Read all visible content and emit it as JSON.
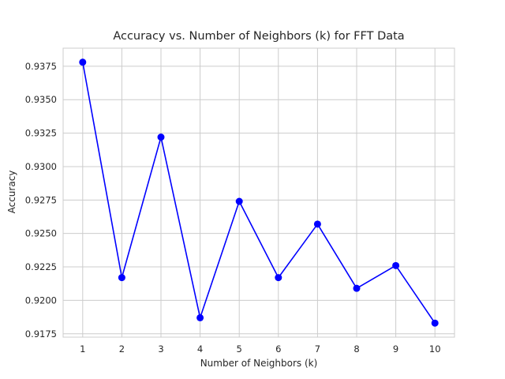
{
  "chart_data": {
    "type": "line",
    "title": "Accuracy vs. Number of Neighbors (k) for FFT Data",
    "xlabel": "Number of Neighbors (k)",
    "ylabel": "Accuracy",
    "x": [
      1,
      2,
      3,
      4,
      5,
      6,
      7,
      8,
      9,
      10
    ],
    "series": [
      {
        "values": [
          0.9378,
          0.9217,
          0.9322,
          0.9187,
          0.9274,
          0.9217,
          0.9257,
          0.9209,
          0.9226,
          0.9183
        ]
      }
    ],
    "xticks": [
      "1",
      "2",
      "3",
      "4",
      "5",
      "6",
      "7",
      "8",
      "9",
      "10"
    ],
    "yticks": [
      "0.9175",
      "0.9200",
      "0.9225",
      "0.9250",
      "0.9275",
      "0.9300",
      "0.9325",
      "0.9350",
      "0.9375"
    ],
    "xlim": [
      0.5,
      10.5
    ],
    "ylim": [
      0.91725,
      0.93885
    ],
    "grid": true,
    "legend": "none",
    "colors": {
      "line": "#0000ff",
      "marker": "#0000ff",
      "grid": "#cccccc",
      "spine": "#cccccc",
      "text": "#262626",
      "background": "#ffffff"
    }
  }
}
